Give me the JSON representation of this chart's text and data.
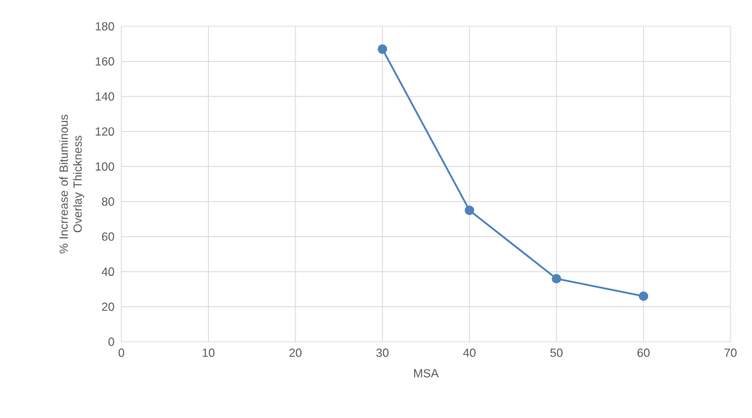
{
  "chart_data": {
    "type": "line",
    "xlabel": "MSA",
    "ylabel": "% Incrrease of Bituminous Overlay Thickness",
    "x": [
      30,
      40,
      50,
      60
    ],
    "series": [
      {
        "color": "#4f81bd",
        "values": [
          167,
          75,
          36,
          26
        ]
      }
    ],
    "xlim": [
      0,
      70
    ],
    "xticks": [
      0,
      10,
      20,
      30,
      40,
      50,
      60,
      70
    ],
    "ylim": [
      0,
      180
    ],
    "yticks": [
      0,
      20,
      40,
      60,
      80,
      100,
      120,
      140,
      160,
      180
    ],
    "grid": true,
    "marker": "circle",
    "line_style": "solid"
  }
}
